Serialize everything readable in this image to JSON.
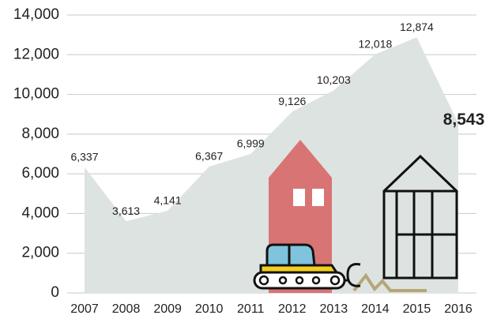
{
  "chart_data": {
    "type": "area",
    "color": "#dde3e1",
    "categories": [
      "2007",
      "2008",
      "2009",
      "2010",
      "2011",
      "2012",
      "2013",
      "2014",
      "2015",
      "2016"
    ],
    "values": [
      6337,
      3613,
      4141,
      6367,
      6999,
      9126,
      10203,
      12018,
      12874,
      8543
    ],
    "value_labels": [
      "6,337",
      "3,613",
      "4,141",
      "6,367",
      "6,999",
      "9,126",
      "10,203",
      "12,018",
      "12,874",
      "8,543"
    ],
    "ylim": [
      0,
      14000
    ],
    "yticks": [
      0,
      {
        "value": 2000,
        "label": "2,000"
      },
      {
        "value": 4000,
        "label": "4,000"
      },
      {
        "value": 6000,
        "label": "6,000"
      },
      {
        "value": 8000,
        "label": "8,000"
      },
      {
        "value": 10000,
        "label": "10,000"
      },
      {
        "value": 12000,
        "label": "12,000"
      },
      {
        "value": 14000,
        "label": "14,000"
      }
    ],
    "grid": true
  }
}
